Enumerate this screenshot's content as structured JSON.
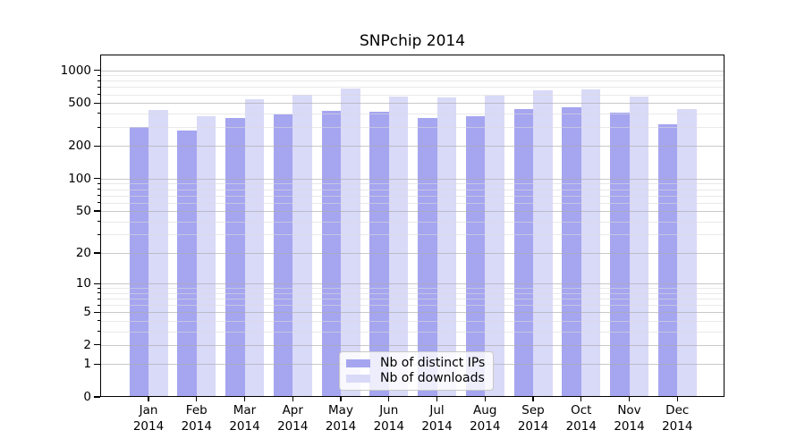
{
  "title": "SNPchip 2014",
  "chart_data": {
    "type": "bar",
    "title": "SNPchip 2014",
    "xlabel": "",
    "ylabel": "",
    "categories": [
      "Jan 2014",
      "Feb 2014",
      "Mar 2014",
      "Apr 2014",
      "May 2014",
      "Jun 2014",
      "Jul 2014",
      "Aug 2014",
      "Sep 2014",
      "Oct 2014",
      "Nov 2014",
      "Dec 2014"
    ],
    "series": [
      {
        "name": "Nb of distinct IPs",
        "color": "#a5a5f0",
        "values": [
          303,
          278,
          366,
          394,
          424,
          415,
          362,
          378,
          442,
          457,
          408,
          320
        ]
      },
      {
        "name": "Nb of downloads",
        "color": "#d9d9f8",
        "values": [
          434,
          374,
          541,
          591,
          683,
          573,
          565,
          584,
          658,
          670,
          576,
          437
        ]
      }
    ],
    "yscale": "log10(value+1)",
    "yticks": [
      0,
      1,
      2,
      5,
      10,
      20,
      50,
      100,
      200,
      500,
      1000
    ],
    "yticks_minor": [
      3,
      4,
      6,
      7,
      8,
      9,
      30,
      40,
      60,
      70,
      80,
      90,
      300,
      400,
      600,
      700,
      800,
      900
    ],
    "ylim": [
      0,
      1394
    ],
    "grid": "horizontal, major and minor, drawn over bars",
    "legend_position": "lower center",
    "background_color": "#ffffff",
    "axis_color": "#000000"
  },
  "legend": {
    "items": [
      {
        "label": "Nb of distinct IPs",
        "color": "#a5a5f0"
      },
      {
        "label": "Nb of downloads",
        "color": "#d9d9f8"
      }
    ]
  }
}
